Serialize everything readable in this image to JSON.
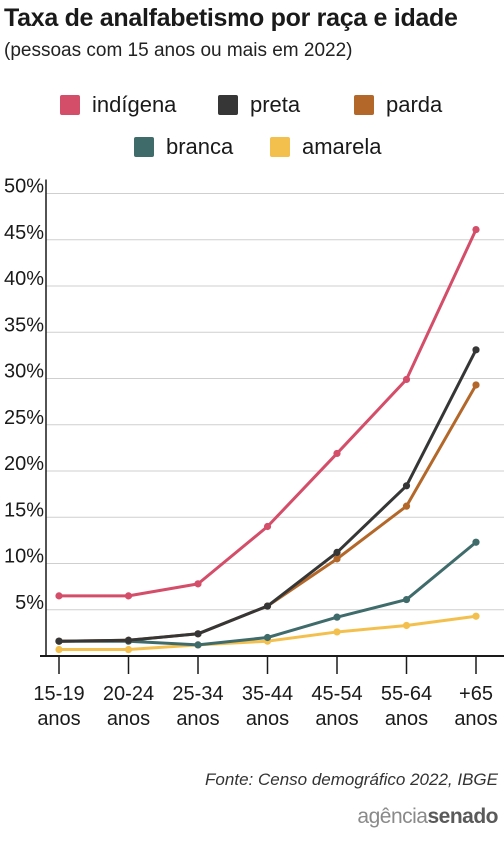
{
  "chart_data": {
    "type": "line",
    "title": "Taxa de analfabetismo por raça e idade",
    "subtitle": "(pessoas com 15 anos ou mais em 2022)",
    "categories": [
      [
        "15-19",
        "anos"
      ],
      [
        "20-24",
        "anos"
      ],
      [
        "25-34",
        "anos"
      ],
      [
        "35-44",
        "anos"
      ],
      [
        "45-54",
        "anos"
      ],
      [
        "55-64",
        "anos"
      ],
      [
        "+65",
        "anos"
      ]
    ],
    "y_ticks": [
      "5%",
      "10%",
      "15%",
      "20%",
      "25%",
      "30%",
      "35%",
      "40%",
      "45%",
      "50%"
    ],
    "ylim": [
      0,
      50
    ],
    "grid": true,
    "legend_position": "top",
    "series": [
      {
        "name": "indígena",
        "color": "#d44d69",
        "values": [
          6.5,
          6.5,
          7.8,
          14.0,
          21.9,
          29.9,
          46.1
        ]
      },
      {
        "name": "preta",
        "color": "#363636",
        "values": [
          1.6,
          1.7,
          2.4,
          5.4,
          11.2,
          18.4,
          33.1
        ]
      },
      {
        "name": "parda",
        "color": "#b3682a",
        "values": [
          1.6,
          1.7,
          2.4,
          5.4,
          10.5,
          16.2,
          29.3
        ]
      },
      {
        "name": "branca",
        "color": "#3f6b6b",
        "values": [
          1.6,
          1.6,
          1.2,
          2.0,
          4.2,
          6.1,
          12.3
        ]
      },
      {
        "name": "amarela",
        "color": "#f3c04e",
        "values": [
          0.7,
          0.7,
          1.2,
          1.6,
          2.6,
          3.3,
          4.3
        ]
      }
    ]
  },
  "source": "Fonte:  Censo demográfico 2022, IBGE",
  "logo": {
    "part1": "agência",
    "part2": "senado"
  }
}
